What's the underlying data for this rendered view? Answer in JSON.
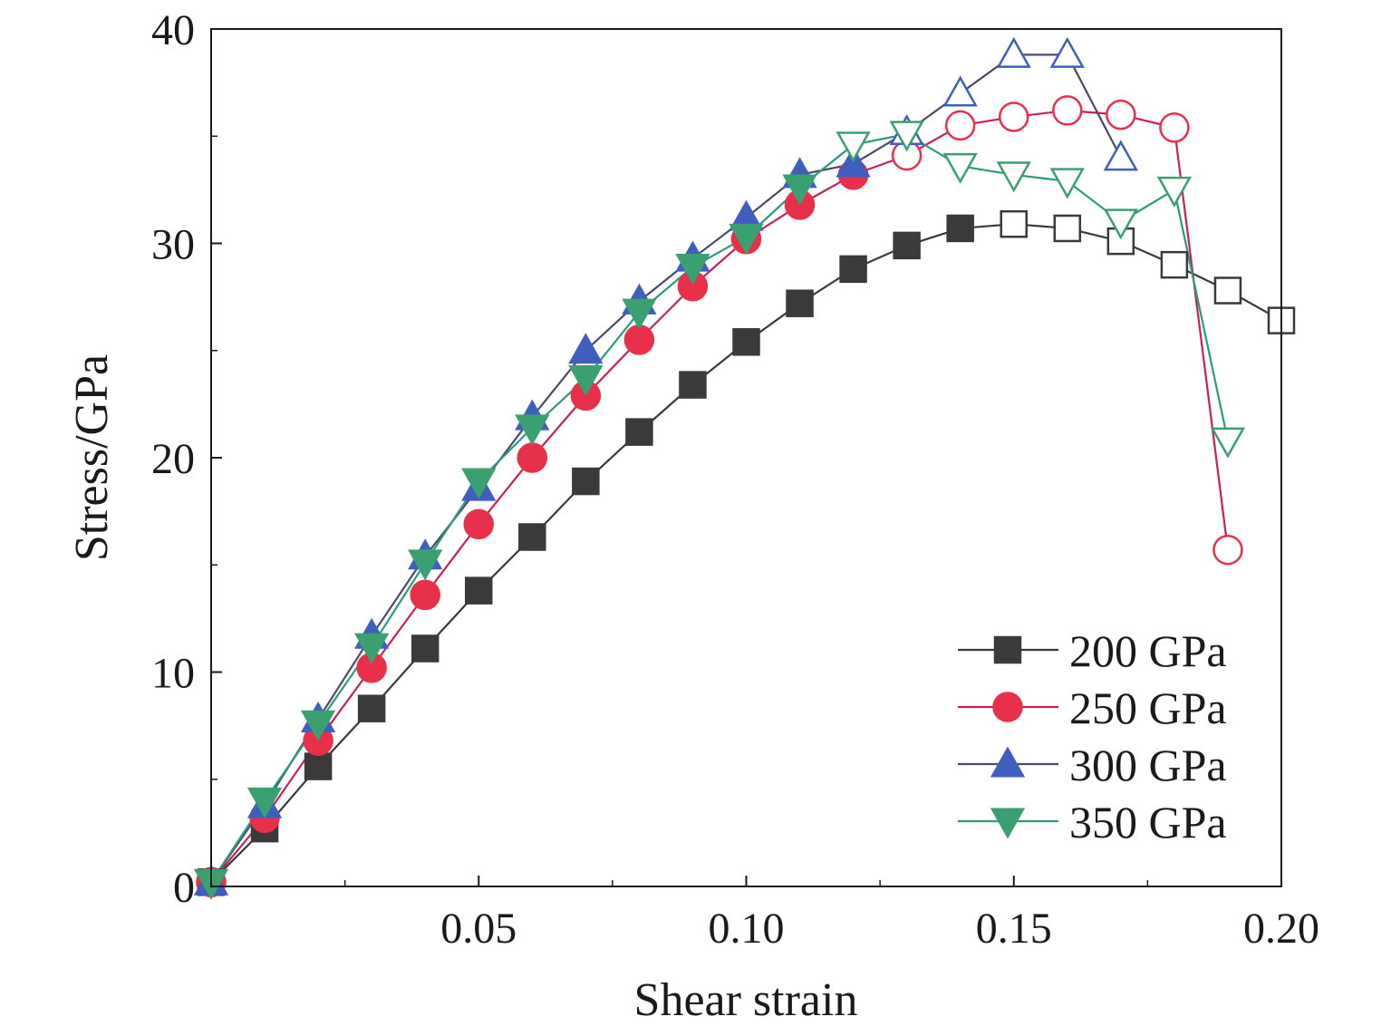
{
  "chart_data": {
    "type": "line",
    "xlabel": "Shear strain",
    "ylabel": "Stress/GPa",
    "xlim": [
      0,
      0.2
    ],
    "ylim": [
      0,
      40
    ],
    "xticks": [
      0.05,
      0.1,
      0.15,
      0.2
    ],
    "xtick_labels": [
      "0.05",
      "0.10",
      "0.15",
      "0.20"
    ],
    "yticks": [
      0,
      10,
      20,
      30,
      40
    ],
    "ytick_labels": [
      "0",
      "10",
      "20",
      "30",
      "40"
    ],
    "grid": false,
    "legend_position": "bottom-right",
    "series": [
      {
        "name": "200 GPa",
        "marker": "square",
        "color": "#3a3a3a",
        "line_color": "#3a3a3a",
        "x": [
          0,
          0.01,
          0.02,
          0.03,
          0.04,
          0.05,
          0.06,
          0.07,
          0.08,
          0.09,
          0.1,
          0.11,
          0.12,
          0.13,
          0.14,
          0.15,
          0.16,
          0.17,
          0.18,
          0.19,
          0.2
        ],
        "y": [
          0.2,
          2.7,
          5.6,
          8.3,
          11.1,
          13.8,
          16.3,
          18.9,
          21.2,
          23.4,
          25.4,
          27.2,
          28.8,
          29.9,
          30.7,
          30.9,
          30.7,
          30.1,
          29.0,
          27.8,
          26.4
        ],
        "filled": [
          true,
          true,
          true,
          true,
          true,
          true,
          true,
          true,
          true,
          true,
          true,
          true,
          true,
          true,
          true,
          false,
          false,
          false,
          false,
          false,
          false
        ]
      },
      {
        "name": "250 GPa",
        "marker": "circle",
        "color": "#e8304a",
        "line_color": "#c8205a",
        "x": [
          0,
          0.01,
          0.02,
          0.03,
          0.04,
          0.05,
          0.06,
          0.07,
          0.08,
          0.09,
          0.1,
          0.11,
          0.12,
          0.13,
          0.14,
          0.15,
          0.16,
          0.17,
          0.18,
          0.19
        ],
        "y": [
          0.2,
          3.2,
          6.8,
          10.2,
          13.6,
          16.9,
          20.0,
          22.9,
          25.5,
          28.0,
          30.2,
          31.8,
          33.2,
          34.1,
          35.5,
          35.9,
          36.2,
          36.0,
          35.4,
          15.7
        ],
        "filled": [
          true,
          true,
          true,
          true,
          true,
          true,
          true,
          true,
          true,
          true,
          true,
          true,
          true,
          false,
          false,
          false,
          false,
          false,
          false,
          false
        ]
      },
      {
        "name": "300 GPa",
        "marker": "triangle-up",
        "color": "#3f5fbf",
        "line_color": "#4a4a6a",
        "x": [
          0,
          0.01,
          0.02,
          0.03,
          0.04,
          0.05,
          0.06,
          0.07,
          0.08,
          0.09,
          0.1,
          0.11,
          0.12,
          0.13,
          0.14,
          0.15,
          0.16,
          0.17
        ],
        "y": [
          0.2,
          3.8,
          7.8,
          11.7,
          15.4,
          18.6,
          21.9,
          25.0,
          27.3,
          29.3,
          31.2,
          33.2,
          33.7,
          35.2,
          37.0,
          38.8,
          38.8,
          34.0
        ],
        "filled": [
          true,
          true,
          true,
          true,
          true,
          true,
          true,
          true,
          true,
          true,
          true,
          true,
          true,
          false,
          false,
          false,
          false,
          false
        ]
      },
      {
        "name": "350 GPa",
        "marker": "triangle-down",
        "color": "#3aa070",
        "line_color": "#2a9a80",
        "x": [
          0,
          0.01,
          0.02,
          0.03,
          0.04,
          0.05,
          0.06,
          0.07,
          0.08,
          0.09,
          0.1,
          0.11,
          0.12,
          0.13,
          0.14,
          0.15,
          0.16,
          0.17,
          0.18,
          0.19
        ],
        "y": [
          0.2,
          4.0,
          7.6,
          11.2,
          15.1,
          18.9,
          21.4,
          23.7,
          26.8,
          28.9,
          30.3,
          32.6,
          34.6,
          35.1,
          33.6,
          33.2,
          32.9,
          31.0,
          32.5,
          20.8
        ],
        "filled": [
          true,
          true,
          true,
          true,
          true,
          true,
          true,
          true,
          true,
          true,
          true,
          true,
          false,
          false,
          false,
          false,
          false,
          false,
          false,
          false
        ]
      }
    ]
  }
}
